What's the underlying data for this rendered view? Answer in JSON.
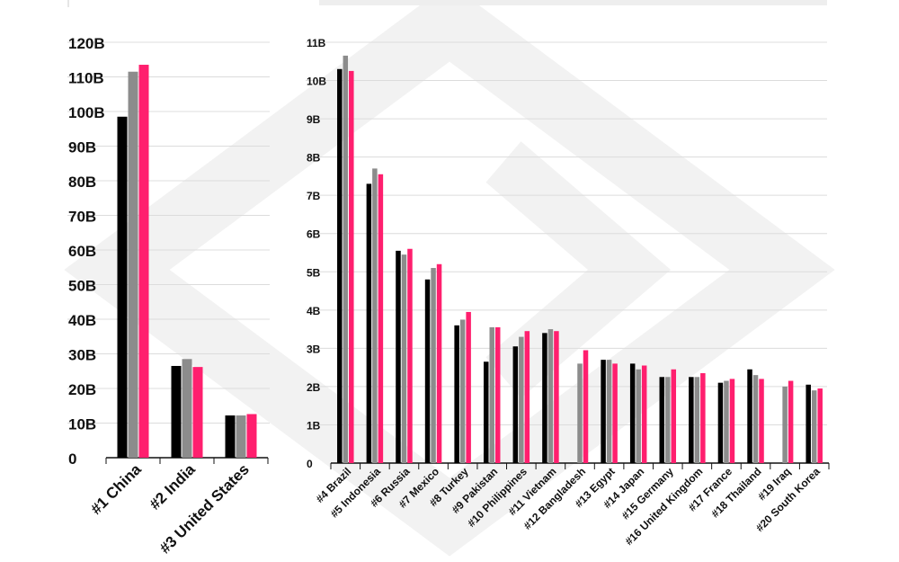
{
  "colors": {
    "series_a": "#000000",
    "series_b": "#8c8c8c",
    "series_c": "#ff1f6e",
    "watermark": "#f2f2f2",
    "grid": "#dcdcdc"
  },
  "chart_data": [
    {
      "type": "bar",
      "categories": [
        "#1 China",
        "#2 India",
        "#3 United States"
      ],
      "series": [
        {
          "values": [
            98.5,
            26.5,
            12.2
          ]
        },
        {
          "values": [
            111.5,
            28.5,
            12.2
          ]
        },
        {
          "values": [
            113.5,
            26.2,
            12.6
          ]
        }
      ],
      "ylim": [
        0,
        120
      ],
      "yticks": [
        "0",
        "10B",
        "20B",
        "30B",
        "40B",
        "50B",
        "60B",
        "70B",
        "80B",
        "90B",
        "100B",
        "110B",
        "120B"
      ],
      "grid": true
    },
    {
      "type": "bar",
      "categories": [
        "#4 Brazil",
        "#5 Indonesia",
        "#6 Russia",
        "#7 Mexico",
        "#8 Turkey",
        "#9 Pakistan",
        "#10 Philippines",
        "#11 Vietnam",
        "#12 Bangladesh",
        "#13 Egypt",
        "#14 Japan",
        "#15 Germany",
        "#16 United Kingdom",
        "#17 France",
        "#18 Thailand",
        "#19 Iraq",
        "#20 South Korea"
      ],
      "series": [
        {
          "values": [
            10.3,
            7.3,
            5.55,
            4.8,
            3.6,
            2.65,
            3.05,
            3.4,
            null,
            2.7,
            2.6,
            2.25,
            2.25,
            2.1,
            2.45,
            null,
            2.05
          ]
        },
        {
          "values": [
            10.65,
            7.7,
            5.45,
            5.1,
            3.75,
            3.55,
            3.3,
            3.5,
            2.6,
            2.7,
            2.45,
            2.25,
            2.25,
            2.15,
            2.3,
            2.0,
            1.9
          ]
        },
        {
          "values": [
            10.25,
            7.55,
            5.6,
            5.2,
            3.95,
            3.55,
            3.45,
            3.45,
            2.95,
            2.6,
            2.55,
            2.45,
            2.35,
            2.2,
            2.2,
            2.15,
            1.95
          ]
        }
      ],
      "ylim": [
        0,
        11
      ],
      "yticks": [
        "0",
        "1B",
        "2B",
        "3B",
        "4B",
        "5B",
        "6B",
        "7B",
        "8B",
        "9B",
        "10B",
        "11B"
      ],
      "grid": true
    }
  ]
}
